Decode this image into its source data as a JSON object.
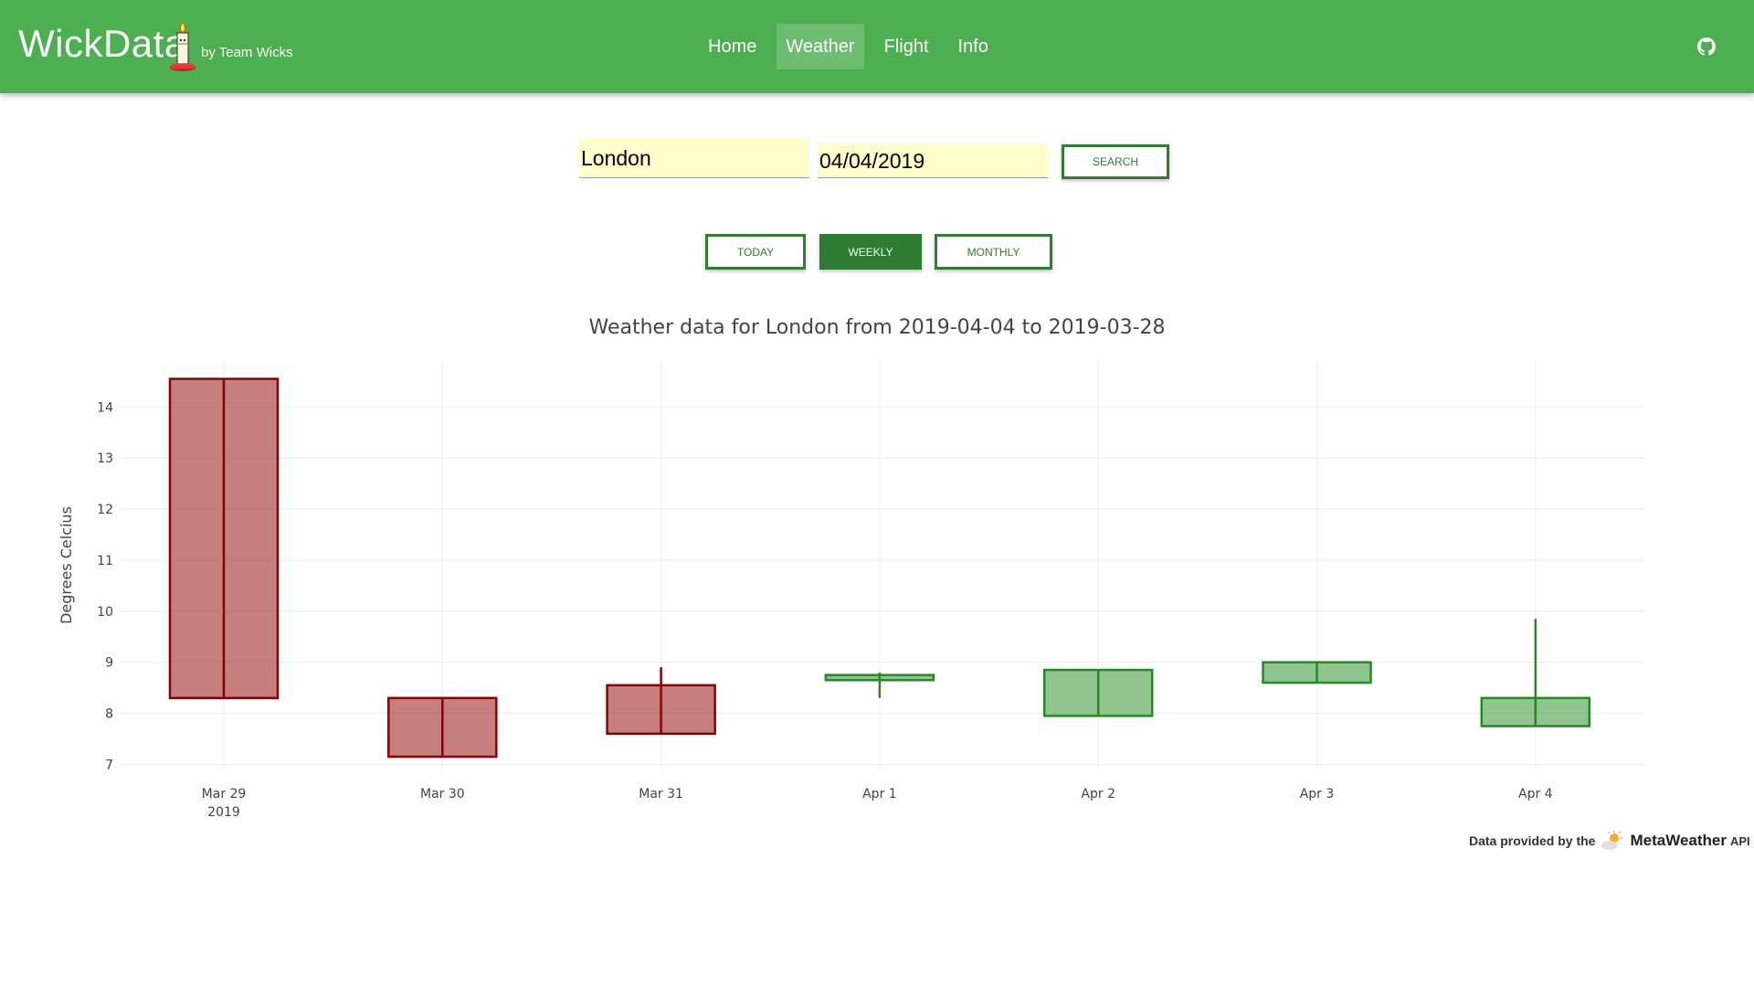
{
  "app": {
    "brand": "WickData",
    "subtitle": "by Team Wicks"
  },
  "nav": {
    "items": [
      {
        "label": "Home",
        "active": false
      },
      {
        "label": "Weather",
        "active": true
      },
      {
        "label": "Flight",
        "active": false
      },
      {
        "label": "Info",
        "active": false
      }
    ],
    "github_icon": "github-icon"
  },
  "search": {
    "city": "London",
    "date": "04/04/2019",
    "button": "SEARCH"
  },
  "range": {
    "today": "TODAY",
    "weekly": "WEEKLY",
    "monthly": "MONTHLY",
    "selected": "WEEKLY"
  },
  "colors": {
    "nav": "#4caf50",
    "button": "#2e7d32",
    "input_bg": "#ffffcc",
    "decreasing": "#8b0000",
    "increasing": "#228b22"
  },
  "chart_data": {
    "type": "candlestick",
    "title": "Weather data for London from 2019-04-04 to 2019-03-28",
    "ylabel": "Degrees Celcius",
    "xlabel": "",
    "ylim": [
      6.9,
      14.9
    ],
    "yticks": [
      7,
      8,
      9,
      10,
      11,
      12,
      13,
      14
    ],
    "grid": true,
    "categories": [
      "Mar 29",
      "Mar 30",
      "Mar 31",
      "Apr 1",
      "Apr 2",
      "Apr 3",
      "Apr 4"
    ],
    "first_tick_year": "2019",
    "open": [
      14.55,
      8.3,
      8.55,
      8.65,
      7.95,
      8.6,
      7.75
    ],
    "close": [
      8.3,
      7.15,
      7.6,
      8.75,
      8.85,
      9.0,
      8.3
    ],
    "high": [
      14.55,
      8.3,
      8.9,
      8.8,
      8.85,
      9.0,
      9.85
    ],
    "low": [
      8.3,
      7.15,
      7.6,
      8.3,
      7.95,
      8.6,
      7.75
    ]
  },
  "footer": {
    "prefix": "Data provided by the",
    "provider": "MetaWeather",
    "suffix": "API",
    "icon": "weather-icon"
  }
}
